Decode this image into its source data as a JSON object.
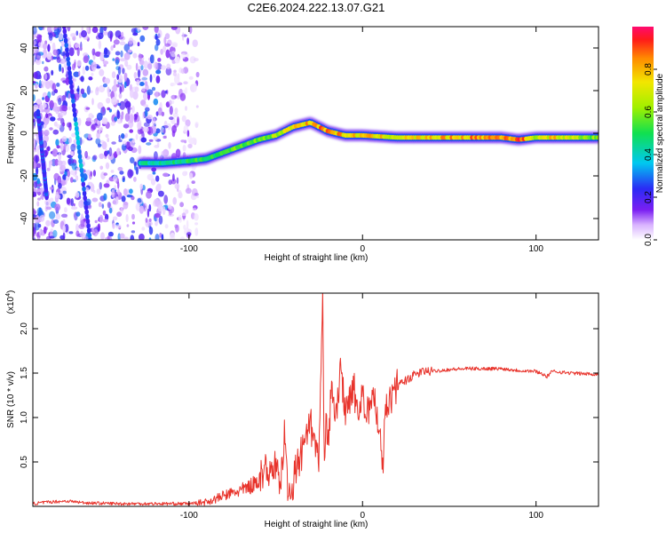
{
  "figure": {
    "title": "C2E6.2024.222.13.07.G21"
  },
  "chart_data": [
    {
      "type": "heatmap",
      "xlabel": "Height of straight line (km)",
      "ylabel": "Frequency (Hz)",
      "xlim": [
        -190,
        136
      ],
      "ylim": [
        -50,
        50
      ],
      "xticks": [
        -100,
        0,
        100
      ],
      "yticks": [
        -40,
        -20,
        0,
        20,
        40
      ],
      "colorbar": {
        "label": "Normalized spectral amplitude",
        "range": [
          0,
          1
        ],
        "ticks": [
          0.0,
          0.2,
          0.4,
          0.6,
          0.8
        ],
        "tick_labels": [
          "0.0",
          "0.2",
          "0.4",
          "0.6",
          "0.8"
        ]
      },
      "signal_track": {
        "x": [
          -128,
          -115,
          -100,
          -90,
          -80,
          -70,
          -60,
          -50,
          -40,
          -30,
          -20,
          -10,
          0,
          20,
          40,
          60,
          80,
          90,
          100,
          110,
          120,
          136
        ],
        "y": [
          -14,
          -14,
          -13,
          -12,
          -9,
          -6,
          -3,
          -1,
          3,
          5,
          1,
          -1,
          -1,
          -2,
          -2,
          -2,
          -2,
          -3,
          -2,
          -2,
          -2,
          -2
        ],
        "amplitude": [
          0.45,
          0.45,
          0.5,
          0.55,
          0.55,
          0.6,
          0.6,
          0.65,
          0.8,
          0.85,
          0.9,
          0.8,
          0.8,
          0.75,
          0.8,
          0.85,
          0.9,
          0.95,
          0.7,
          0.8,
          0.7,
          0.6
        ]
      },
      "noise_region_x": [
        -190,
        -95
      ],
      "streaks": [
        {
          "x": [
            -157,
            -172
          ],
          "y": [
            -50,
            50
          ]
        },
        {
          "x": [
            -182,
            -187
          ],
          "y": [
            -30,
            10
          ]
        }
      ]
    },
    {
      "type": "line",
      "xlabel": "Height of straight line (km)",
      "ylabel": "SNR (10 * v/v)",
      "y_multiplier": "(x10",
      "y_multiplier_exp": "4",
      "y_multiplier_close": ")",
      "xlim": [
        -190,
        136
      ],
      "ylim": [
        0,
        2.4
      ],
      "xticks": [
        -100,
        0,
        100
      ],
      "yticks": [
        0.5,
        1.0,
        1.5,
        2.0
      ],
      "ytick_labels": [
        "0.5",
        "1.0",
        "1.5",
        "2.0"
      ],
      "series": [
        {
          "color": "#e8332b",
          "x": [
            -190,
            -180,
            -170,
            -160,
            -140,
            -120,
            -105,
            -100,
            -95,
            -90,
            -85,
            -80,
            -75,
            -70,
            -65,
            -60,
            -55,
            -50,
            -47,
            -45,
            -43,
            -40,
            -35,
            -30,
            -25,
            -23,
            -22,
            -21,
            -20,
            -18,
            -15,
            -13,
            -10,
            -8,
            -5,
            -3,
            0,
            3,
            6,
            9,
            12,
            13,
            15,
            18,
            20,
            25,
            30,
            35,
            40,
            50,
            60,
            70,
            80,
            90,
            100,
            105,
            106,
            108,
            110,
            120,
            130,
            136
          ],
          "y": [
            0.03,
            0.05,
            0.06,
            0.04,
            0.03,
            0.03,
            0.03,
            0.03,
            0.04,
            0.05,
            0.08,
            0.12,
            0.15,
            0.18,
            0.22,
            0.3,
            0.4,
            0.5,
            0.2,
            0.85,
            0.1,
            0.3,
            0.6,
            0.9,
            0.5,
            2.35,
            0.4,
            1.2,
            0.6,
            1.3,
            1.0,
            1.6,
            1.1,
            1.2,
            1.4,
            1.0,
            1.25,
            1.0,
            1.35,
            0.9,
            0.5,
            1.1,
            1.2,
            1.3,
            1.35,
            1.42,
            1.48,
            1.52,
            1.52,
            1.54,
            1.55,
            1.55,
            1.55,
            1.53,
            1.52,
            1.48,
            1.45,
            1.5,
            1.52,
            1.5,
            1.49,
            1.49
          ]
        }
      ]
    }
  ]
}
